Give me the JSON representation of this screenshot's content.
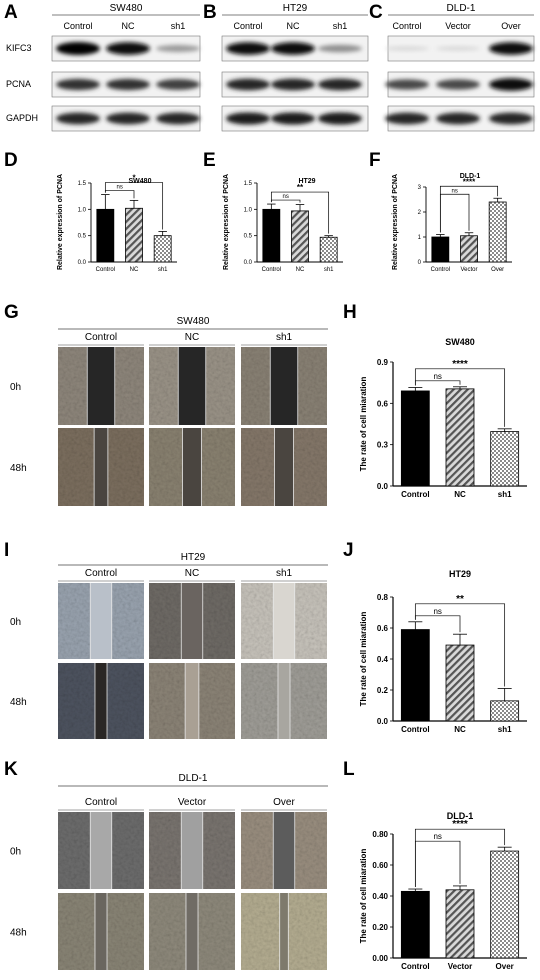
{
  "panels": [
    "A",
    "B",
    "C",
    "D",
    "E",
    "F",
    "G",
    "H",
    "I",
    "J",
    "K",
    "L"
  ],
  "blots": [
    {
      "cell_line": "SW480",
      "lanes": [
        "Control",
        "NC",
        "sh1"
      ],
      "rows": [
        {
          "label": "KIFC3",
          "bands": [
            1.0,
            0.95,
            0.35
          ]
        },
        {
          "label": "PCNA",
          "bands": [
            0.8,
            0.8,
            0.75
          ]
        },
        {
          "label": "GAPDH",
          "bands": [
            0.85,
            0.85,
            0.85
          ]
        }
      ]
    },
    {
      "cell_line": "HT29",
      "lanes": [
        "Control",
        "NC",
        "sh1"
      ],
      "rows": [
        {
          "label": "KIFC3",
          "bands": [
            0.95,
            0.95,
            0.4
          ]
        },
        {
          "label": "PCNA",
          "bands": [
            0.85,
            0.85,
            0.85
          ]
        },
        {
          "label": "GAPDH",
          "bands": [
            0.9,
            0.9,
            0.9
          ]
        }
      ]
    },
    {
      "cell_line": "DLD-1",
      "lanes": [
        "Control",
        "Vector",
        "Over"
      ],
      "rows": [
        {
          "label": "KIFC3",
          "bands": [
            0.08,
            0.08,
            0.95
          ]
        },
        {
          "label": "PCNA",
          "bands": [
            0.7,
            0.7,
            0.95
          ]
        },
        {
          "label": "GAPDH",
          "bands": [
            0.85,
            0.85,
            0.85
          ]
        }
      ]
    }
  ],
  "chart_data": [
    {
      "panel": "D",
      "type": "bar",
      "title": "SW480",
      "ylabel": "Relative expression of PCNA",
      "categories": [
        "Control",
        "NC",
        "sh1"
      ],
      "values": [
        1.0,
        1.02,
        0.5
      ],
      "errors": [
        0.28,
        0.15,
        0.08
      ],
      "ylim": [
        0,
        1.5
      ],
      "yticks": [
        "0.0",
        "0.5",
        "1.0",
        "1.5"
      ],
      "significance": [
        {
          "from": 0,
          "to": 1,
          "label": "ns"
        },
        {
          "from": 0,
          "to": 2,
          "label": "*"
        }
      ]
    },
    {
      "panel": "E",
      "type": "bar",
      "title": "HT29",
      "ylabel": "Relative expression of PCNA",
      "categories": [
        "Control",
        "NC",
        "sh1"
      ],
      "values": [
        1.0,
        0.97,
        0.47
      ],
      "errors": [
        0.1,
        0.12,
        0.03
      ],
      "ylim": [
        0,
        1.5
      ],
      "yticks": [
        "0.0",
        "0.5",
        "1.0",
        "1.5"
      ],
      "significance": [
        {
          "from": 0,
          "to": 1,
          "label": "ns"
        },
        {
          "from": 0,
          "to": 2,
          "label": "**"
        }
      ]
    },
    {
      "panel": "F",
      "type": "bar",
      "title": "DLD-1",
      "ylabel": "Relative expression of PCNA",
      "categories": [
        "Control",
        "Vector",
        "Over"
      ],
      "values": [
        1.0,
        1.05,
        2.4
      ],
      "errors": [
        0.1,
        0.12,
        0.15
      ],
      "ylim": [
        0,
        3
      ],
      "yticks": [
        "0",
        "1",
        "2",
        "3"
      ],
      "significance": [
        {
          "from": 0,
          "to": 1,
          "label": "ns"
        },
        {
          "from": 0,
          "to": 2,
          "label": "****"
        }
      ]
    },
    {
      "panel": "H",
      "type": "bar",
      "title": "SW480",
      "ylabel": "The rate of cell miaration",
      "categories": [
        "Control",
        "NC",
        "sh1"
      ],
      "values": [
        0.69,
        0.705,
        0.395
      ],
      "errors": [
        0.025,
        0.015,
        0.02
      ],
      "ylim": [
        0,
        0.9
      ],
      "yticks": [
        "0.0",
        "0.3",
        "0.6",
        "0.9"
      ],
      "significance": [
        {
          "from": 0,
          "to": 1,
          "label": "ns"
        },
        {
          "from": 0,
          "to": 2,
          "label": "****"
        }
      ]
    },
    {
      "panel": "J",
      "type": "bar",
      "title": "HT29",
      "ylabel": "The rate of cell miaration",
      "categories": [
        "Control",
        "NC",
        "sh1"
      ],
      "values": [
        0.59,
        0.49,
        0.13
      ],
      "errors": [
        0.05,
        0.07,
        0.08
      ],
      "ylim": [
        0,
        0.8
      ],
      "yticks": [
        "0.0",
        "0.2",
        "0.4",
        "0.6",
        "0.8"
      ],
      "significance": [
        {
          "from": 0,
          "to": 1,
          "label": "ns"
        },
        {
          "from": 0,
          "to": 2,
          "label": "**"
        }
      ]
    },
    {
      "panel": "L",
      "type": "bar",
      "title": "DLD-1",
      "ylabel": "The rate of cell miaration",
      "categories": [
        "Control",
        "Vector",
        "Over"
      ],
      "values": [
        0.43,
        0.44,
        0.69
      ],
      "errors": [
        0.015,
        0.025,
        0.025
      ],
      "ylim": [
        0,
        0.8
      ],
      "yticks": [
        "0.00",
        "0.20",
        "0.40",
        "0.60",
        "0.80"
      ],
      "significance": [
        {
          "from": 0,
          "to": 1,
          "label": "ns"
        },
        {
          "from": 0,
          "to": 2,
          "label": "****"
        }
      ]
    }
  ],
  "wound_panels": [
    {
      "panel": "G",
      "cell_line": "SW480",
      "groups": [
        "Control",
        "NC",
        "sh1"
      ],
      "timepoints": [
        "0h",
        "48h"
      ]
    },
    {
      "panel": "I",
      "cell_line": "HT29",
      "groups": [
        "Control",
        "NC",
        "sh1"
      ],
      "timepoints": [
        "0h",
        "48h"
      ]
    },
    {
      "panel": "K",
      "cell_line": "DLD-1",
      "groups": [
        "Control",
        "Vector",
        "Over"
      ],
      "timepoints": [
        "0h",
        "48h"
      ]
    }
  ],
  "fills": [
    "solid-black",
    "diagonal-hatch-gray",
    "checkerboard"
  ]
}
